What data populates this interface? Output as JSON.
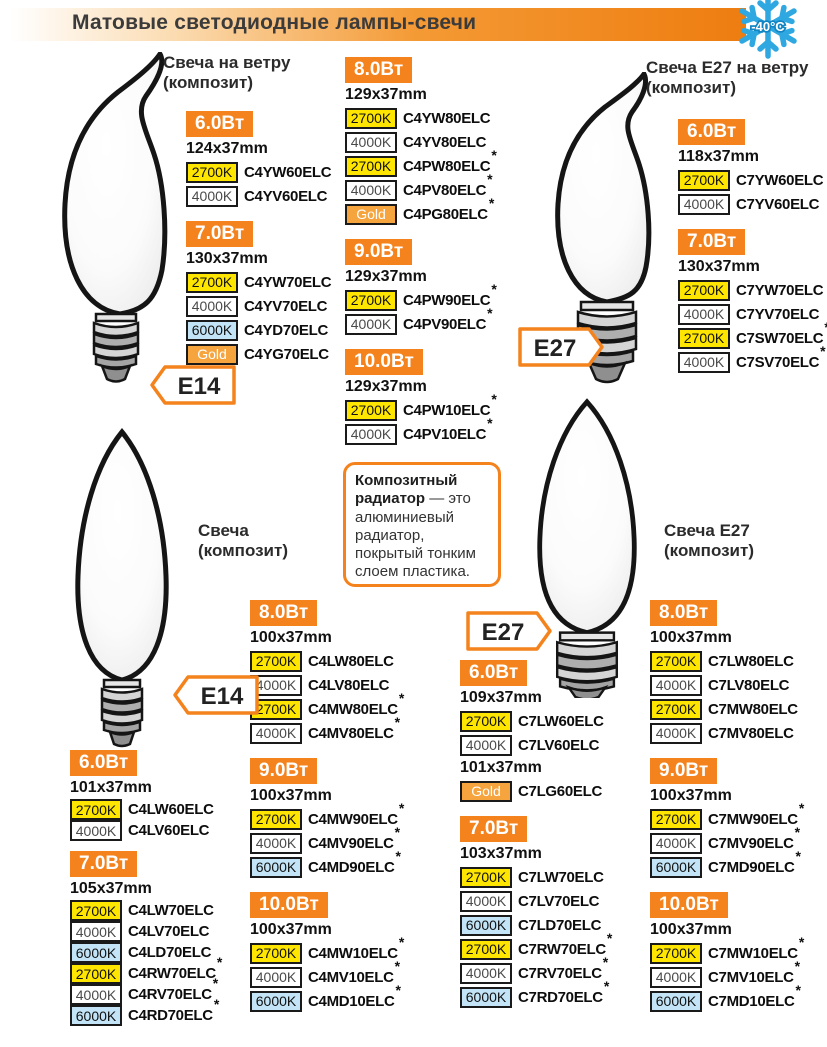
{
  "header": {
    "title": "Матовые светодиодные лампы-свечи",
    "temp_badge": "-40°C"
  },
  "info_box": {
    "lead": "Композитный радиатор",
    "rest": " — это алюминиевый радиатор, покрытый тонким слоем пластика."
  },
  "colors": {
    "accent_orange": "#f4831d",
    "temp_2700": "#ffe600",
    "temp_4000": "#ffffff",
    "temp_6000": "#c3e4f6",
    "gold": "#f6a43e",
    "snowflake_blue": "#2fa8e1"
  },
  "products": [
    {
      "title": "Свеча  на ветру\n(композит)",
      "connector": "E14",
      "blocks": [
        {
          "watt": "6.0Вт",
          "items": [
            {
              "t": "dim",
              "text": "124x37mm"
            },
            {
              "t": "row",
              "temp": "2700K",
              "code": "C4YW60ELC",
              "star": false
            },
            {
              "t": "row",
              "temp": "4000K",
              "code": "C4YV60ELC",
              "star": false
            }
          ]
        },
        {
          "watt": "7.0Вт",
          "items": [
            {
              "t": "dim",
              "text": "130x37mm"
            },
            {
              "t": "row",
              "temp": "2700K",
              "code": "C4YW70ELC",
              "star": false
            },
            {
              "t": "row",
              "temp": "4000K",
              "code": "C4YV70ELC",
              "star": false
            },
            {
              "t": "row",
              "temp": "6000K",
              "code": "C4YD70ELC",
              "star": false
            },
            {
              "t": "row",
              "temp": "Gold",
              "code": "C4YG70ELC",
              "star": false
            }
          ]
        },
        {
          "watt": "8.0Вт",
          "items": [
            {
              "t": "dim",
              "text": "129x37mm"
            },
            {
              "t": "row",
              "temp": "2700K",
              "code": "C4YW80ELC",
              "star": false
            },
            {
              "t": "row",
              "temp": "4000K",
              "code": "C4YV80ELC",
              "star": false
            },
            {
              "t": "row",
              "temp": "2700K",
              "code": "C4PW80ELC",
              "star": true
            },
            {
              "t": "row",
              "temp": "4000K",
              "code": "C4PV80ELC",
              "star": true
            },
            {
              "t": "row",
              "temp": "Gold",
              "code": "C4PG80ELC",
              "star": true
            }
          ]
        },
        {
          "watt": "9.0Вт",
          "items": [
            {
              "t": "dim",
              "text": "129x37mm"
            },
            {
              "t": "row",
              "temp": "2700K",
              "code": "C4PW90ELC",
              "star": true
            },
            {
              "t": "row",
              "temp": "4000K",
              "code": "C4PV90ELC",
              "star": true
            }
          ]
        },
        {
          "watt": "10.0Вт",
          "items": [
            {
              "t": "dim",
              "text": "129x37mm"
            },
            {
              "t": "row",
              "temp": "2700K",
              "code": "C4PW10ELC",
              "star": true
            },
            {
              "t": "row",
              "temp": "4000K",
              "code": "C4PV10ELC",
              "star": true
            }
          ]
        }
      ]
    },
    {
      "title": "Свеча E27 на ветру\n(композит)",
      "connector": "E27",
      "blocks": [
        {
          "watt": "6.0Вт",
          "items": [
            {
              "t": "dim",
              "text": "118x37mm"
            },
            {
              "t": "row",
              "temp": "2700K",
              "code": "C7YW60ELC",
              "star": false
            },
            {
              "t": "row",
              "temp": "4000K",
              "code": "C7YV60ELC",
              "star": false
            }
          ]
        },
        {
          "watt": "7.0Вт",
          "items": [
            {
              "t": "dim",
              "text": "130x37mm"
            },
            {
              "t": "row",
              "temp": "2700K",
              "code": "C7YW70ELC",
              "star": false
            },
            {
              "t": "row",
              "temp": "4000K",
              "code": "C7YV70ELC",
              "star": false
            },
            {
              "t": "row",
              "temp": "2700K",
              "code": "C7SW70ELC",
              "star": true
            },
            {
              "t": "row",
              "temp": "4000K",
              "code": "C7SV70ELC",
              "star": true
            }
          ]
        }
      ]
    },
    {
      "title": "Свеча\n(композит)",
      "connector": "E14",
      "blocks": [
        {
          "watt": "6.0Вт",
          "items": [
            {
              "t": "dim",
              "text": "101x37mm"
            },
            {
              "t": "row",
              "temp": "2700K",
              "code": "C4LW60ELC",
              "star": false
            },
            {
              "t": "row",
              "temp": "4000K",
              "code": "C4LV60ELC",
              "star": false
            }
          ]
        },
        {
          "watt": "7.0Вт",
          "items": [
            {
              "t": "dim",
              "text": "105x37mm"
            },
            {
              "t": "row",
              "temp": "2700K",
              "code": "C4LW70ELC",
              "star": false
            },
            {
              "t": "row",
              "temp": "4000K",
              "code": "C4LV70ELC",
              "star": false
            },
            {
              "t": "row",
              "temp": "6000K",
              "code": "C4LD70ELC",
              "star": false
            },
            {
              "t": "row",
              "temp": "2700K",
              "code": "C4RW70ELC",
              "star": true
            },
            {
              "t": "row",
              "temp": "4000K",
              "code": "C4RV70ELC",
              "star": true
            },
            {
              "t": "row",
              "temp": "6000K",
              "code": "C4RD70ELC",
              "star": true
            }
          ]
        },
        {
          "watt": "8.0Вт",
          "items": [
            {
              "t": "dim",
              "text": "100x37mm"
            },
            {
              "t": "row",
              "temp": "2700K",
              "code": "C4LW80ELC",
              "star": false
            },
            {
              "t": "row",
              "temp": "4000K",
              "code": "C4LV80ELC",
              "star": false
            },
            {
              "t": "row",
              "temp": "2700K",
              "code": "C4MW80ELC",
              "star": true
            },
            {
              "t": "row",
              "temp": "4000K",
              "code": "C4MV80ELC",
              "star": true
            }
          ]
        },
        {
          "watt": "9.0Вт",
          "items": [
            {
              "t": "dim",
              "text": "100x37mm"
            },
            {
              "t": "row",
              "temp": "2700K",
              "code": "C4MW90ELC",
              "star": true
            },
            {
              "t": "row",
              "temp": "4000K",
              "code": "C4MV90ELC",
              "star": true
            },
            {
              "t": "row",
              "temp": "6000K",
              "code": "C4MD90ELC",
              "star": true
            }
          ]
        },
        {
          "watt": "10.0Вт",
          "items": [
            {
              "t": "dim",
              "text": "100x37mm"
            },
            {
              "t": "row",
              "temp": "2700K",
              "code": "C4MW10ELC",
              "star": true
            },
            {
              "t": "row",
              "temp": "4000K",
              "code": "C4MV10ELC",
              "star": true
            },
            {
              "t": "row",
              "temp": "6000K",
              "code": "C4MD10ELC",
              "star": true
            }
          ]
        }
      ]
    },
    {
      "title": "Свеча E27\n(композит)",
      "connector": "E27",
      "blocks": [
        {
          "watt": "6.0Вт",
          "items": [
            {
              "t": "dim",
              "text": "109x37mm"
            },
            {
              "t": "row",
              "temp": "2700K",
              "code": "C7LW60ELC",
              "star": false
            },
            {
              "t": "row",
              "temp": "4000K",
              "code": "C7LV60ELC",
              "star": false
            },
            {
              "t": "dim",
              "text": "101x37mm"
            },
            {
              "t": "row",
              "temp": "Gold",
              "code": "C7LG60ELC",
              "star": false
            }
          ]
        },
        {
          "watt": "7.0Вт",
          "items": [
            {
              "t": "dim",
              "text": "103x37mm"
            },
            {
              "t": "row",
              "temp": "2700K",
              "code": "C7LW70ELC",
              "star": false
            },
            {
              "t": "row",
              "temp": "4000K",
              "code": "C7LV70ELC",
              "star": false
            },
            {
              "t": "row",
              "temp": "6000K",
              "code": "C7LD70ELC",
              "star": false
            },
            {
              "t": "row",
              "temp": "2700K",
              "code": "C7RW70ELC",
              "star": true
            },
            {
              "t": "row",
              "temp": "4000K",
              "code": "C7RV70ELC",
              "star": true
            },
            {
              "t": "row",
              "temp": "6000K",
              "code": "C7RD70ELC",
              "star": true
            }
          ]
        },
        {
          "watt": "8.0Вт",
          "items": [
            {
              "t": "dim",
              "text": "100x37mm"
            },
            {
              "t": "row",
              "temp": "2700K",
              "code": "C7LW80ELC",
              "star": false
            },
            {
              "t": "row",
              "temp": "4000K",
              "code": "C7LV80ELC",
              "star": false
            },
            {
              "t": "row",
              "temp": "2700K",
              "code": "C7MW80ELC",
              "star": false
            },
            {
              "t": "row",
              "temp": "4000K",
              "code": "C7MV80ELC",
              "star": false
            }
          ]
        },
        {
          "watt": "9.0Вт",
          "items": [
            {
              "t": "dim",
              "text": "100x37mm"
            },
            {
              "t": "row",
              "temp": "2700K",
              "code": "C7MW90ELC",
              "star": true
            },
            {
              "t": "row",
              "temp": "4000K",
              "code": "C7MV90ELC",
              "star": true
            },
            {
              "t": "row",
              "temp": "6000K",
              "code": "C7MD90ELC",
              "star": true
            }
          ]
        },
        {
          "watt": "10.0Вт",
          "items": [
            {
              "t": "dim",
              "text": "100x37mm"
            },
            {
              "t": "row",
              "temp": "2700K",
              "code": "C7MW10ELC",
              "star": true
            },
            {
              "t": "row",
              "temp": "4000K",
              "code": "C7MV10ELC",
              "star": true
            },
            {
              "t": "row",
              "temp": "6000K",
              "code": "C7MD10ELC",
              "star": true
            }
          ]
        }
      ]
    }
  ]
}
